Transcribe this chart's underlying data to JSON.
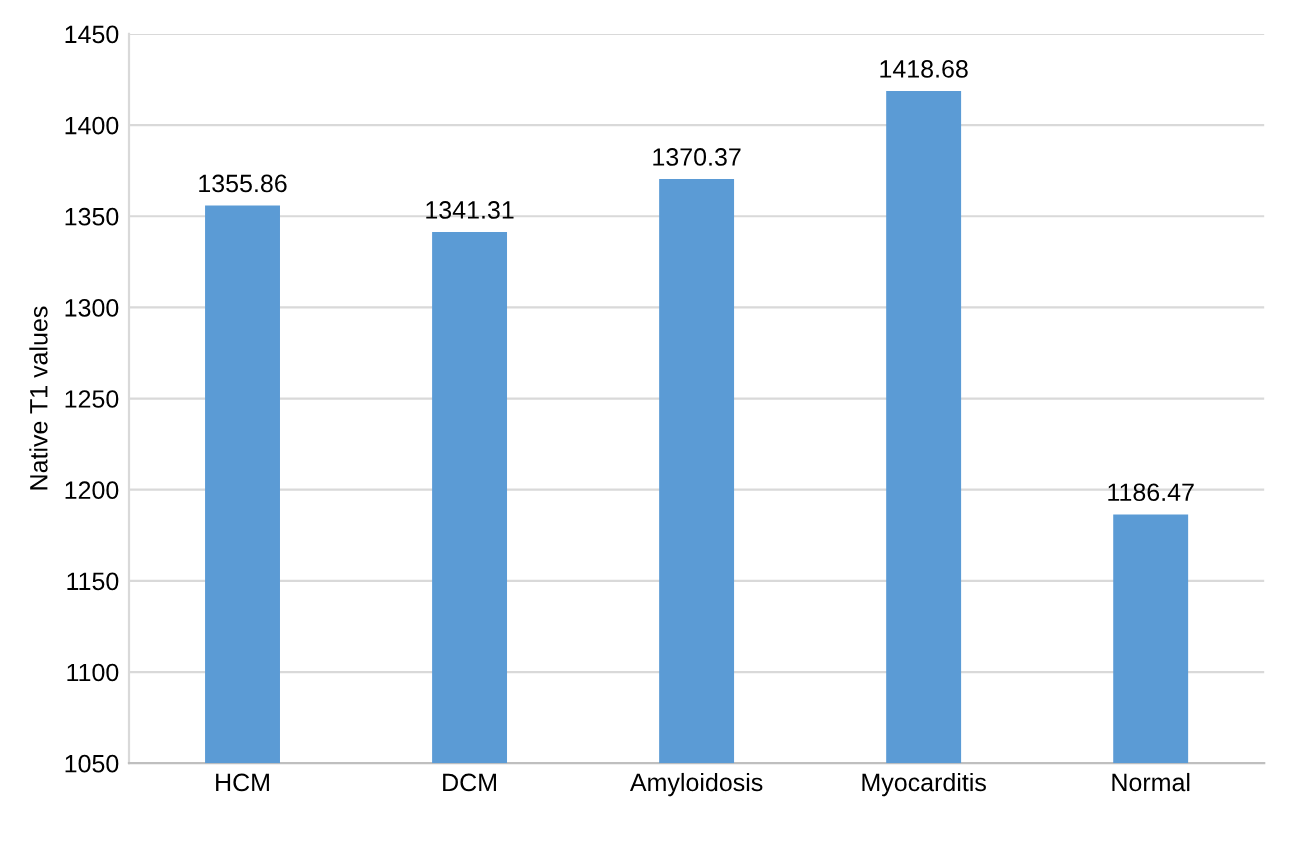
{
  "chart_data": {
    "type": "bar",
    "ylabel": "Native T1 values",
    "categories": [
      "HCM",
      "DCM",
      "Amyloidosis",
      "Myocarditis",
      "Normal"
    ],
    "values": [
      1355.86,
      1341.31,
      1370.37,
      1418.68,
      1186.47
    ],
    "color": "#5b9bd5",
    "ylim": [
      1050,
      1450
    ],
    "yticks": [
      1050,
      1100,
      1150,
      1200,
      1250,
      1300,
      1350,
      1400,
      1450
    ],
    "grid": "y",
    "data_labels": true
  }
}
